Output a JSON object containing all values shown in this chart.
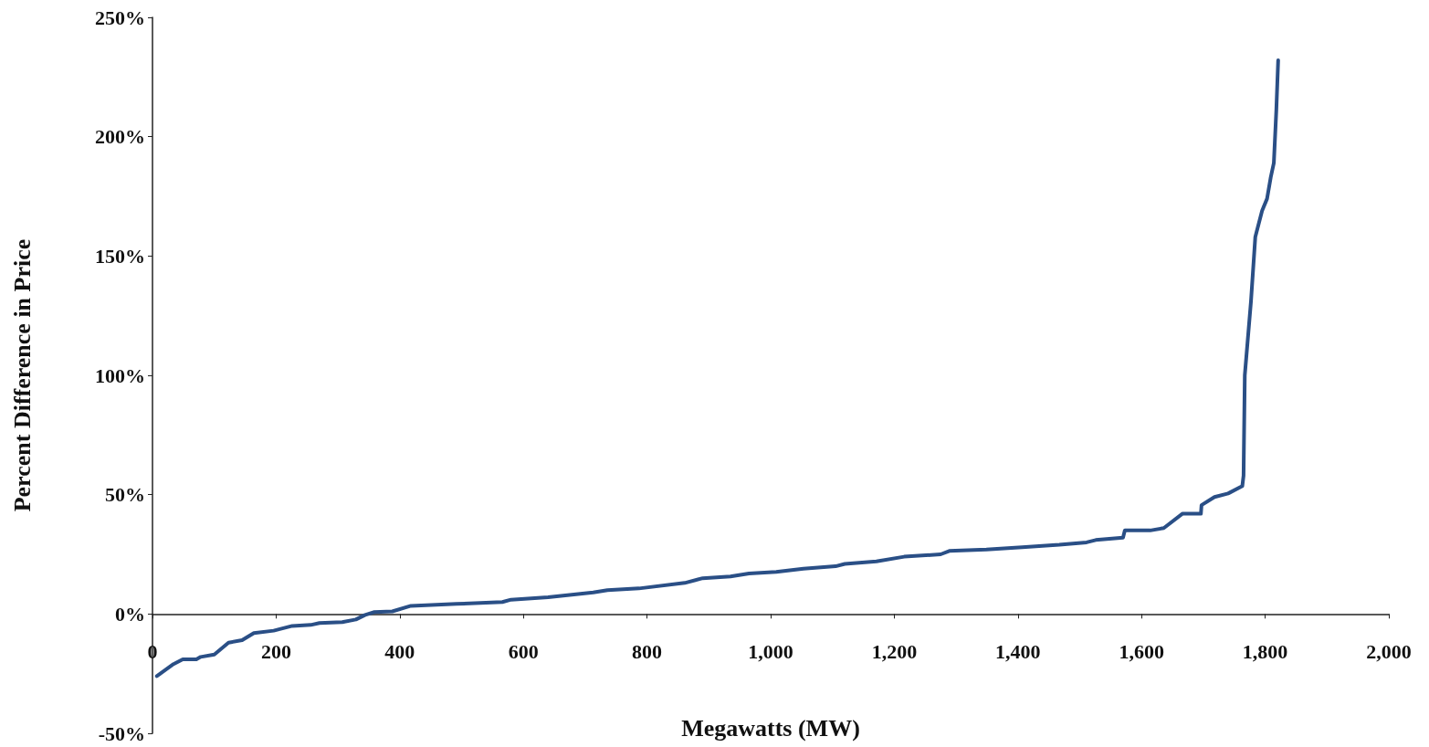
{
  "chart_data": {
    "type": "line",
    "xlabel": "Megawatts (MW)",
    "ylabel": "Percent Difference in Price",
    "xlim": [
      0,
      2000
    ],
    "ylim": [
      -50,
      250
    ],
    "xticks": [
      0,
      200,
      400,
      600,
      800,
      {
        "value": 1000,
        "label": "1,000"
      },
      {
        "value": 1200,
        "label": "1,200"
      },
      {
        "value": 1400,
        "label": "1,400"
      },
      {
        "value": 1600,
        "label": "1,600"
      },
      {
        "value": 1800,
        "label": "1,800"
      },
      {
        "value": 2000,
        "label": "2,000"
      }
    ],
    "yticks": [
      {
        "value": -50,
        "label": "-50%"
      },
      {
        "value": 0,
        "label": "0%"
      },
      {
        "value": 50,
        "label": "50%"
      },
      {
        "value": 100,
        "label": "100%"
      },
      {
        "value": 150,
        "label": "150%"
      },
      {
        "value": 200,
        "label": "200%"
      },
      {
        "value": 250,
        "label": "250%"
      }
    ],
    "marker": "none",
    "line_style": "solid",
    "series": [
      {
        "color": "#2a4f86",
        "x": [
          7,
          34,
          49,
          71,
          78,
          100,
          123,
          145,
          164,
          196,
          226,
          256,
          270,
          307,
          329,
          344,
          359,
          388,
          418,
          492,
          566,
          580,
          640,
          713,
          736,
          787,
          861,
          890,
          935,
          965,
          1009,
          1053,
          1105,
          1120,
          1171,
          1216,
          1275,
          1289,
          1349,
          1407,
          1467,
          1511,
          1526,
          1570,
          1573,
          1614,
          1636,
          1666,
          1696,
          1697,
          1718,
          1740,
          1763,
          1765,
          1767,
          1777,
          1784,
          1795,
          1803,
          1809,
          1814,
          1818,
          1821
        ],
        "values": [
          -26,
          -21,
          -19,
          -19,
          -18,
          -17,
          -12,
          -11,
          -8,
          -7,
          -5,
          -4.6,
          -3.8,
          -3.4,
          -2.3,
          -0.4,
          0.8,
          1.1,
          3.4,
          4.2,
          5,
          6,
          7,
          9,
          10,
          10.7,
          13,
          15,
          15.7,
          17,
          17.6,
          19,
          20,
          21,
          22,
          24,
          25,
          26.4,
          27,
          28,
          29,
          30,
          31,
          32,
          35,
          35,
          36,
          42,
          42,
          45.6,
          49,
          50.5,
          53.6,
          58,
          100,
          131,
          158,
          169,
          174,
          183,
          189,
          211,
          232
        ]
      }
    ]
  }
}
